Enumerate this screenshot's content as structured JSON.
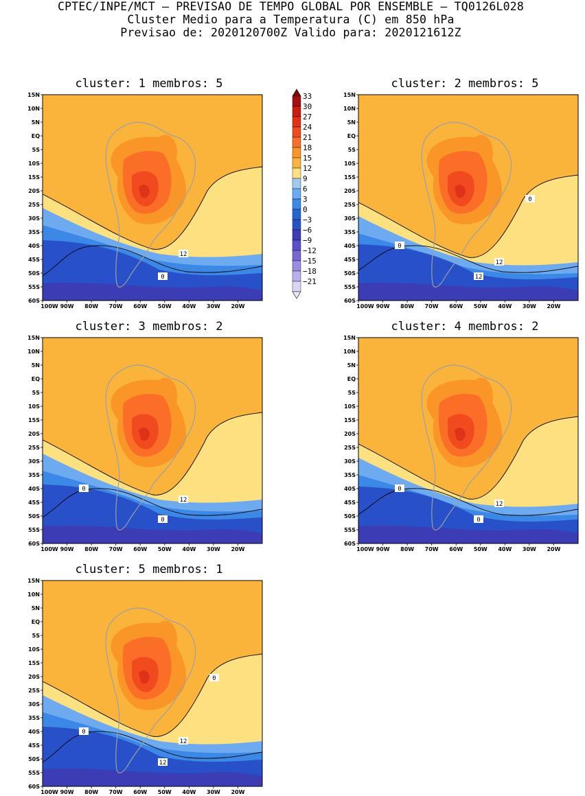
{
  "header": {
    "line1": "CPTEC/INPE/MCT – PREVISAO DE TEMPO GLOBAL POR ENSEMBLE – TQ0126L028",
    "line2": "Cluster Medio para a Temperatura (C) em 850 hPa",
    "line3": "Previsao de: 2020120700Z   Valido para: 2020121612Z"
  },
  "axes": {
    "lat_labels": [
      "15N",
      "10N",
      "5N",
      "EQ",
      "5S",
      "10S",
      "15S",
      "20S",
      "25S",
      "30S",
      "35S",
      "40S",
      "45S",
      "50S",
      "55S",
      "60S"
    ],
    "lon_labels": [
      "100W",
      "90W",
      "80W",
      "70W",
      "60W",
      "50W",
      "40W",
      "30W",
      "20W"
    ]
  },
  "colorbar": {
    "levels": [
      "33",
      "30",
      "27",
      "24",
      "21",
      "18",
      "15",
      "12",
      "9",
      "6",
      "3",
      "0",
      "−3",
      "−6",
      "−9",
      "−12",
      "−15",
      "−18",
      "−21"
    ],
    "colors": [
      "#a50f0f",
      "#c81e14",
      "#e03218",
      "#f04a1e",
      "#fa6e28",
      "#fa9628",
      "#fab43c",
      "#fde080",
      "#a0c8f0",
      "#6eaaf0",
      "#3c88e6",
      "#2864d2",
      "#2850c8",
      "#3c3cb4",
      "#5a50c8",
      "#7868d2",
      "#9a8ce0",
      "#bcb0ec",
      "#dcd4f6"
    ]
  },
  "panels": [
    {
      "title": "cluster: 1   membros: 5",
      "labels": [
        "12",
        "0"
      ]
    },
    {
      "title": "cluster: 2   membros: 5",
      "labels": [
        "12",
        "12",
        "0",
        "0"
      ]
    },
    {
      "title": "cluster: 3   membros: 2",
      "labels": [
        "12",
        "0",
        "0"
      ]
    },
    {
      "title": "cluster: 4   membros: 2",
      "labels": [
        "12",
        "0",
        "0"
      ]
    },
    {
      "title": "cluster: 5   membros: 1",
      "labels": [
        "12",
        "12",
        "0",
        "0"
      ]
    }
  ]
}
